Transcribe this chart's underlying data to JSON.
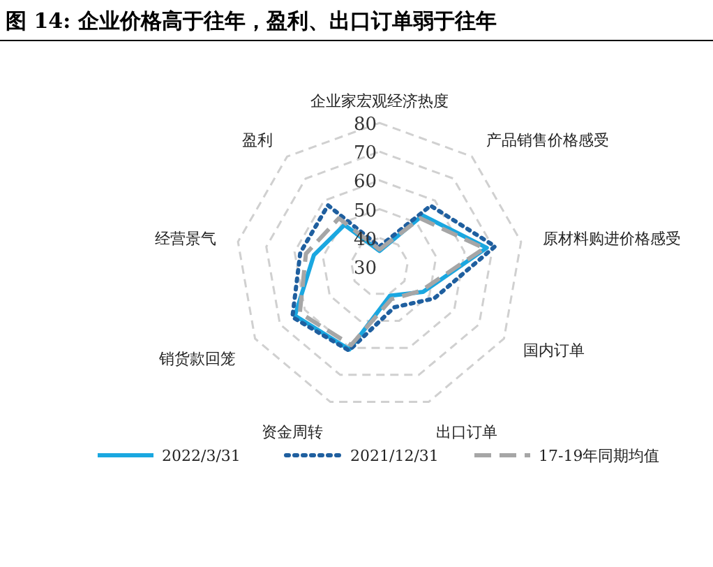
{
  "chart_data": {
    "type": "radar",
    "title": "图 14: 企业价格高于往年，盈利、出口订单弱于往年",
    "categories": [
      "企业家宏观经济热度",
      "产品销售价格感受",
      "原材料购进价格感受",
      "国内订单",
      "出口订单",
      "资金周转",
      "销货款回笼",
      "经营景气",
      "盈利"
    ],
    "series": [
      {
        "name": "2022/3/31",
        "color": "#1aa7e0",
        "line_style": "solid",
        "values": [
          35.5,
          53.3,
          67.9,
          47.5,
          40.7,
          60.6,
          64,
          53.2,
          49
        ]
      },
      {
        "name": "2021/12/31",
        "color": "#1f5f9f",
        "line_style": "dotted",
        "values": [
          37,
          57.7,
          70.8,
          52,
          45,
          61,
          65,
          58,
          57.9
        ]
      },
      {
        "name": "17-19年同期均值",
        "color": "#a6a6a6",
        "line_style": "dashed",
        "values": [
          36,
          52,
          67,
          46.7,
          42,
          59,
          62,
          56,
          52
        ]
      }
    ],
    "ylim": [
      30,
      80
    ],
    "yticks": [
      30,
      40,
      50,
      60,
      70,
      80
    ],
    "grid": true,
    "legend": "bottom"
  }
}
